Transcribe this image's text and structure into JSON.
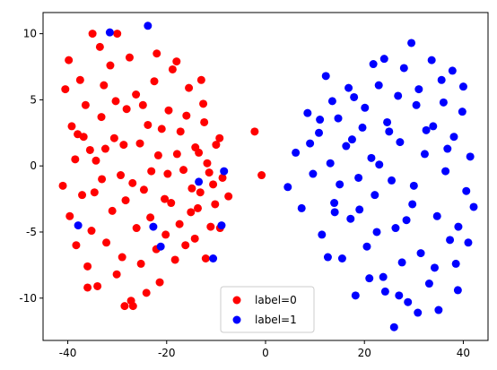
{
  "chart_data": {
    "type": "scatter",
    "xlim": [
      -45,
      45
    ],
    "ylim": [
      -13.2,
      11.6
    ],
    "x_ticks": [
      -40,
      -20,
      0,
      20,
      40
    ],
    "y_ticks": [
      -10,
      -5,
      0,
      5,
      10
    ],
    "grid": false,
    "legend_placement": "bottom-center",
    "series": [
      {
        "name": "label=0",
        "color": "#ff0000",
        "points": [
          [
            -40.5,
            5.8
          ],
          [
            -39.8,
            8.0
          ],
          [
            -39.2,
            3.0
          ],
          [
            -38.0,
            2.4
          ],
          [
            -37.5,
            6.5
          ],
          [
            -36.4,
            4.6
          ],
          [
            -35.5,
            1.2
          ],
          [
            -34.3,
            0.4
          ],
          [
            -33.2,
            3.7
          ],
          [
            -32.7,
            6.1
          ],
          [
            -31.4,
            7.6
          ],
          [
            -30.6,
            2.1
          ],
          [
            -29.3,
            -0.7
          ],
          [
            -28.1,
            4.3
          ],
          [
            -27.5,
            8.2
          ],
          [
            -26.2,
            5.4
          ],
          [
            -25.4,
            1.7
          ],
          [
            -24.6,
            -1.8
          ],
          [
            -23.8,
            3.1
          ],
          [
            -22.5,
            6.4
          ],
          [
            -21.7,
            0.8
          ],
          [
            -20.4,
            -2.5
          ],
          [
            -19.6,
            4.2
          ],
          [
            -18.8,
            7.3
          ],
          [
            -17.2,
            2.6
          ],
          [
            -16.6,
            -0.3
          ],
          [
            -15.5,
            5.9
          ],
          [
            -14.2,
            1.4
          ],
          [
            -13.7,
            -3.2
          ],
          [
            -12.4,
            3.3
          ],
          [
            -11.8,
            0.2
          ],
          [
            -10.6,
            -1.4
          ],
          [
            -9.3,
            2.1
          ],
          [
            -8.7,
            -0.9
          ],
          [
            -7.5,
            -2.3
          ],
          [
            -41.0,
            -1.5
          ],
          [
            -39.6,
            -3.8
          ],
          [
            -38.3,
            -6.0
          ],
          [
            -37.1,
            -2.2
          ],
          [
            -36.0,
            -7.6
          ],
          [
            -35.2,
            -4.9
          ],
          [
            -34.0,
            -9.1
          ],
          [
            -33.1,
            -1.0
          ],
          [
            -32.2,
            -5.8
          ],
          [
            -31.0,
            -3.4
          ],
          [
            -30.1,
            -8.2
          ],
          [
            -29.0,
            -6.9
          ],
          [
            -28.3,
            -2.6
          ],
          [
            -27.2,
            -10.2
          ],
          [
            -26.1,
            -4.7
          ],
          [
            -25.2,
            -7.4
          ],
          [
            -24.1,
            -9.6
          ],
          [
            -23.3,
            -3.9
          ],
          [
            -22.1,
            -6.3
          ],
          [
            -21.4,
            -8.8
          ],
          [
            -20.2,
            -5.2
          ],
          [
            -19.1,
            -2.8
          ],
          [
            -18.3,
            -7.1
          ],
          [
            -17.4,
            -4.4
          ],
          [
            -16.2,
            -6.0
          ],
          [
            -15.1,
            -3.5
          ],
          [
            -14.3,
            -5.5
          ],
          [
            -13.2,
            -2.0
          ],
          [
            -12.1,
            -7.0
          ],
          [
            -11.1,
            -4.6
          ],
          [
            -10.2,
            -2.9
          ],
          [
            -9.2,
            -4.7
          ],
          [
            -28.5,
            -10.6
          ],
          [
            -26.8,
            -10.6
          ],
          [
            -36.0,
            -9.2
          ],
          [
            -35.0,
            10.0
          ],
          [
            -30.0,
            10.0
          ],
          [
            -33.5,
            9.0
          ],
          [
            -22.0,
            8.5
          ],
          [
            -18.0,
            7.9
          ],
          [
            -13.0,
            6.5
          ],
          [
            -38.5,
            0.5
          ],
          [
            -36.8,
            2.2
          ],
          [
            -34.6,
            -2.0
          ],
          [
            -32.4,
            1.3
          ],
          [
            -30.3,
            4.9
          ],
          [
            -28.7,
            1.6
          ],
          [
            -26.9,
            -1.3
          ],
          [
            -24.8,
            4.6
          ],
          [
            -23.1,
            -0.4
          ],
          [
            -21.0,
            2.8
          ],
          [
            -19.8,
            -0.6
          ],
          [
            -17.9,
            0.9
          ],
          [
            -16.0,
            3.8
          ],
          [
            -14.9,
            -1.7
          ],
          [
            -13.5,
            1.0
          ],
          [
            -12.6,
            4.7
          ],
          [
            -11.4,
            -0.5
          ],
          [
            -10.0,
            1.6
          ],
          [
            -0.8,
            -0.7
          ],
          [
            -2.2,
            2.6
          ]
        ]
      },
      {
        "name": "label=1",
        "color": "#0000ff",
        "points": [
          [
            -37.9,
            -4.5
          ],
          [
            -31.5,
            10.1
          ],
          [
            -23.8,
            10.6
          ],
          [
            -22.7,
            -4.6
          ],
          [
            -21.2,
            -6.1
          ],
          [
            -13.5,
            -1.2
          ],
          [
            -10.6,
            -7.0
          ],
          [
            -8.4,
            -0.4
          ],
          [
            -8.9,
            -4.5
          ],
          [
            4.5,
            -1.6
          ],
          [
            6.1,
            1.0
          ],
          [
            7.3,
            -3.2
          ],
          [
            8.5,
            4.0
          ],
          [
            9.6,
            -0.6
          ],
          [
            10.8,
            2.5
          ],
          [
            11.4,
            -5.2
          ],
          [
            12.2,
            6.8
          ],
          [
            13.1,
            0.2
          ],
          [
            13.9,
            -2.8
          ],
          [
            14.7,
            3.6
          ],
          [
            15.5,
            -7.0
          ],
          [
            16.3,
            1.5
          ],
          [
            17.2,
            -4.0
          ],
          [
            17.9,
            5.2
          ],
          [
            18.8,
            -0.9
          ],
          [
            19.6,
            2.9
          ],
          [
            20.5,
            -6.1
          ],
          [
            21.4,
            0.6
          ],
          [
            22.1,
            -2.2
          ],
          [
            22.9,
            6.1
          ],
          [
            23.8,
            -8.4
          ],
          [
            24.6,
            3.3
          ],
          [
            25.5,
            -1.1
          ],
          [
            26.3,
            -4.7
          ],
          [
            27.2,
            1.8
          ],
          [
            28.0,
            7.4
          ],
          [
            28.8,
            -10.3
          ],
          [
            29.7,
            -2.9
          ],
          [
            30.5,
            4.6
          ],
          [
            31.4,
            -6.6
          ],
          [
            32.2,
            0.9
          ],
          [
            33.1,
            -8.9
          ],
          [
            33.9,
            3.0
          ],
          [
            34.7,
            -3.8
          ],
          [
            35.6,
            6.5
          ],
          [
            36.4,
            -0.4
          ],
          [
            37.3,
            -5.6
          ],
          [
            38.1,
            2.2
          ],
          [
            38.9,
            -9.4
          ],
          [
            39.8,
            4.1
          ],
          [
            40.6,
            -1.9
          ],
          [
            41.4,
            0.7
          ],
          [
            42.1,
            -3.1
          ],
          [
            29.5,
            9.3
          ],
          [
            26.0,
            -12.2
          ],
          [
            21.8,
            7.7
          ],
          [
            18.2,
            -9.8
          ],
          [
            12.6,
            -6.9
          ],
          [
            16.8,
            5.9
          ],
          [
            24.2,
            -9.5
          ],
          [
            35.0,
            -10.9
          ],
          [
            31.0,
            5.8
          ],
          [
            27.6,
            -7.3
          ],
          [
            20.1,
            4.4
          ],
          [
            15.0,
            -1.4
          ],
          [
            9.0,
            1.7
          ],
          [
            11.0,
            3.5
          ],
          [
            14.0,
            -3.5
          ],
          [
            23.0,
            0.1
          ],
          [
            25.0,
            2.6
          ],
          [
            30.0,
            -1.5
          ],
          [
            32.5,
            2.7
          ],
          [
            36.8,
            1.3
          ],
          [
            39.0,
            -4.6
          ],
          [
            34.2,
            -7.7
          ],
          [
            28.5,
            -4.1
          ],
          [
            22.5,
            -5.0
          ],
          [
            19.0,
            -3.3
          ],
          [
            17.5,
            2.0
          ],
          [
            13.5,
            4.9
          ],
          [
            26.8,
            5.3
          ],
          [
            37.8,
            7.2
          ],
          [
            33.6,
            8.0
          ],
          [
            24.0,
            8.1
          ],
          [
            30.8,
            -11.1
          ],
          [
            27.0,
            -9.8
          ],
          [
            36.0,
            4.8
          ],
          [
            40.0,
            6.0
          ],
          [
            41.0,
            -5.8
          ],
          [
            38.5,
            -7.4
          ],
          [
            21.0,
            -8.5
          ]
        ]
      }
    ]
  }
}
